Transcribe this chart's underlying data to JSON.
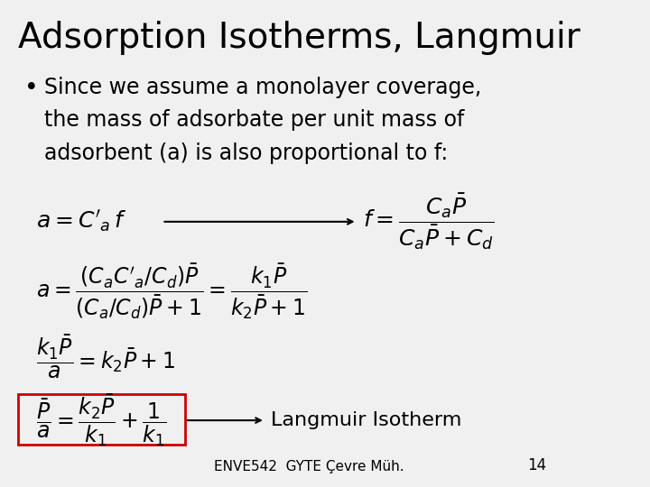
{
  "title": "Adsorption Isotherms, Langmuir",
  "bullet_text": "Since we assume a monolayer coverage, the mass of adsorbate per unit mass of adsorbent (a) is also proportional to f:",
  "eq1_left": "$a = C'_a f$",
  "eq1_right": "$f = \\dfrac{C_a\\bar{P}}{C_a\\bar{P} + C_d}$",
  "eq2": "$a = \\dfrac{(C_a C'_a / C_d)\\bar{P}}{(C_a/C_d)\\bar{P}+1} = \\dfrac{k_1\\bar{P}}{k_2\\bar{P}+1}$",
  "eq3": "$\\dfrac{k_1\\bar{P}}{a} = k_2\\bar{P}+1$",
  "eq4": "$\\dfrac{\\bar{P}}{a} = \\dfrac{k_2\\bar{P}}{k_1} + \\dfrac{1}{k_1}$",
  "langmuir_label": "Langmuir Isotherm",
  "footer": "ENVE542  GYTE Çevre Müh.",
  "page_num": "14",
  "bg_color": "#f0f0f0",
  "text_color": "#000000",
  "box_color": "#cc0000",
  "title_fontsize": 28,
  "bullet_fontsize": 17,
  "eq_fontsize": 15,
  "footer_fontsize": 11
}
